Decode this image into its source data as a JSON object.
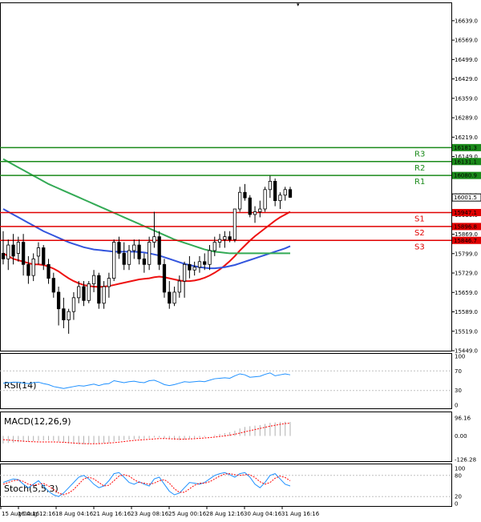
{
  "colors": {
    "bg": "#ffffff",
    "frame": "#000000",
    "bull_fill": "#ffffff",
    "bear_fill": "#000000",
    "candle_stroke": "#000000",
    "resistance": "#1a8a1a",
    "support": "#e00000",
    "ma_fast": "#ee1111",
    "ma_mid": "#3355dd",
    "ma_slow": "#33aa55",
    "rsi_line": "#1e90ff",
    "macd_hist": "#b0b0b0",
    "macd_signal": "#ff0000",
    "stoch_main": "#1e90ff",
    "stoch_signal": "#ff0000",
    "label_text": "#ffffff"
  },
  "chart_data": [
    {
      "type": "candlestick",
      "title": "",
      "ylim": [
        15449.0,
        16705.0
      ],
      "y_ticks": [
        "16639.0",
        "16569.0",
        "16499.0",
        "16429.0",
        "16359.0",
        "16289.0",
        "16219.0",
        "16149.0",
        "16079.0",
        "16009.0",
        "15939.0",
        "15869.0",
        "15799.0",
        "15729.0",
        "15659.0",
        "15589.0",
        "15519.0",
        "15449.0"
      ],
      "x_ticks": [
        "15 Aug 00:16",
        "16 Aug 12:16",
        "18 Aug 04:16",
        "21 Aug 16:16",
        "23 Aug 08:16",
        "25 Aug 00:16",
        "28 Aug 12:16",
        "30 Aug 04:16",
        "31 Aug 16:16"
      ],
      "candles": [
        {
          "o": 15800,
          "h": 15880,
          "l": 15760,
          "c": 15780
        },
        {
          "o": 15780,
          "h": 15850,
          "l": 15740,
          "c": 15830
        },
        {
          "o": 15830,
          "h": 15870,
          "l": 15760,
          "c": 15790
        },
        {
          "o": 15800,
          "h": 15860,
          "l": 15770,
          "c": 15840
        },
        {
          "o": 15840,
          "h": 15870,
          "l": 15720,
          "c": 15760
        },
        {
          "o": 15760,
          "h": 15790,
          "l": 15690,
          "c": 15720
        },
        {
          "o": 15720,
          "h": 15800,
          "l": 15700,
          "c": 15780
        },
        {
          "o": 15790,
          "h": 15840,
          "l": 15760,
          "c": 15820
        },
        {
          "o": 15820,
          "h": 15830,
          "l": 15740,
          "c": 15760
        },
        {
          "o": 15760,
          "h": 15780,
          "l": 15690,
          "c": 15710
        },
        {
          "o": 15710,
          "h": 15730,
          "l": 15640,
          "c": 15660
        },
        {
          "o": 15660,
          "h": 15680,
          "l": 15540,
          "c": 15600
        },
        {
          "o": 15600,
          "h": 15640,
          "l": 15530,
          "c": 15560
        },
        {
          "o": 15560,
          "h": 15600,
          "l": 15510,
          "c": 15590
        },
        {
          "o": 15590,
          "h": 15660,
          "l": 15560,
          "c": 15640
        },
        {
          "o": 15640,
          "h": 15700,
          "l": 15620,
          "c": 15680
        },
        {
          "o": 15680,
          "h": 15700,
          "l": 15610,
          "c": 15630
        },
        {
          "o": 15630,
          "h": 15700,
          "l": 15620,
          "c": 15690
        },
        {
          "o": 15690,
          "h": 15740,
          "l": 15660,
          "c": 15720
        },
        {
          "o": 15720,
          "h": 15730,
          "l": 15600,
          "c": 15620
        },
        {
          "o": 15620,
          "h": 15700,
          "l": 15600,
          "c": 15680
        },
        {
          "o": 15680,
          "h": 15730,
          "l": 15640,
          "c": 15710
        },
        {
          "o": 15710,
          "h": 15850,
          "l": 15700,
          "c": 15840
        },
        {
          "o": 15840,
          "h": 15860,
          "l": 15780,
          "c": 15800
        },
        {
          "o": 15800,
          "h": 15840,
          "l": 15740,
          "c": 15760
        },
        {
          "o": 15760,
          "h": 15830,
          "l": 15740,
          "c": 15810
        },
        {
          "o": 15810,
          "h": 15850,
          "l": 15780,
          "c": 15830
        },
        {
          "o": 15830,
          "h": 15850,
          "l": 15760,
          "c": 15780
        },
        {
          "o": 15780,
          "h": 15800,
          "l": 15730,
          "c": 15760
        },
        {
          "o": 15760,
          "h": 15860,
          "l": 15740,
          "c": 15840
        },
        {
          "o": 15840,
          "h": 15950,
          "l": 15820,
          "c": 15860
        },
        {
          "o": 15860,
          "h": 15880,
          "l": 15740,
          "c": 15760
        },
        {
          "o": 15760,
          "h": 15780,
          "l": 15640,
          "c": 15660
        },
        {
          "o": 15660,
          "h": 15700,
          "l": 15600,
          "c": 15620
        },
        {
          "o": 15620,
          "h": 15680,
          "l": 15610,
          "c": 15660
        },
        {
          "o": 15660,
          "h": 15720,
          "l": 15640,
          "c": 15700
        },
        {
          "o": 15700,
          "h": 15770,
          "l": 15640,
          "c": 15760
        },
        {
          "o": 15760,
          "h": 15790,
          "l": 15710,
          "c": 15740
        },
        {
          "o": 15740,
          "h": 15770,
          "l": 15720,
          "c": 15750
        },
        {
          "o": 15750,
          "h": 15790,
          "l": 15730,
          "c": 15770
        },
        {
          "o": 15770,
          "h": 15800,
          "l": 15740,
          "c": 15760
        },
        {
          "o": 15760,
          "h": 15830,
          "l": 15740,
          "c": 15810
        },
        {
          "o": 15810,
          "h": 15860,
          "l": 15790,
          "c": 15840
        },
        {
          "o": 15840,
          "h": 15870,
          "l": 15820,
          "c": 15850
        },
        {
          "o": 15850,
          "h": 15880,
          "l": 15820,
          "c": 15860
        },
        {
          "o": 15860,
          "h": 15880,
          "l": 15840,
          "c": 15850
        },
        {
          "o": 15850,
          "h": 15950,
          "l": 15840,
          "c": 15960
        },
        {
          "o": 15960,
          "h": 16040,
          "l": 15950,
          "c": 16020
        },
        {
          "o": 16020,
          "h": 16050,
          "l": 15990,
          "c": 16000
        },
        {
          "o": 16000,
          "h": 16010,
          "l": 15930,
          "c": 15940
        },
        {
          "o": 15940,
          "h": 15970,
          "l": 15910,
          "c": 15950
        },
        {
          "o": 15950,
          "h": 15990,
          "l": 15930,
          "c": 15960
        },
        {
          "o": 15960,
          "h": 16040,
          "l": 15950,
          "c": 16030
        },
        {
          "o": 16030,
          "h": 16080,
          "l": 16000,
          "c": 16060
        },
        {
          "o": 16060,
          "h": 16070,
          "l": 15970,
          "c": 15990
        },
        {
          "o": 15990,
          "h": 16020,
          "l": 15960,
          "c": 16010
        },
        {
          "o": 16010,
          "h": 16040,
          "l": 15990,
          "c": 16030
        },
        {
          "o": 16030,
          "h": 16040,
          "l": 16000,
          "c": 16002
        }
      ],
      "moving_averages": [
        {
          "name": "red",
          "values": [
            15800,
            15790,
            15780,
            15775,
            15770,
            15765,
            15760,
            15760,
            15758,
            15752,
            15745,
            15735,
            15722,
            15710,
            15700,
            15692,
            15686,
            15682,
            15680,
            15679,
            15680,
            15682,
            15686,
            15690,
            15694,
            15698,
            15702,
            15706,
            15708,
            15710,
            15714,
            15716,
            15714,
            15710,
            15706,
            15702,
            15700,
            15700,
            15702,
            15706,
            15712,
            15720,
            15730,
            15742,
            15756,
            15772,
            15790,
            15810,
            15828,
            15846,
            15862,
            15876,
            15890,
            15904,
            15918,
            15930,
            15940,
            15950
          ]
        },
        {
          "name": "blue",
          "values": [
            15960,
            15950,
            15940,
            15930,
            15920,
            15910,
            15900,
            15890,
            15880,
            15872,
            15864,
            15856,
            15848,
            15840,
            15834,
            15828,
            15822,
            15818,
            15814,
            15812,
            15810,
            15808,
            15806,
            15806,
            15806,
            15806,
            15806,
            15805,
            15803,
            15800,
            15796,
            15792,
            15786,
            15780,
            15774,
            15768,
            15762,
            15758,
            15754,
            15750,
            15748,
            15746,
            15746,
            15748,
            15750,
            15754,
            15758,
            15764,
            15770,
            15776,
            15782,
            15788,
            15794,
            15800,
            15806,
            15812,
            15818,
            15826
          ]
        },
        {
          "name": "green",
          "values": [
            16140,
            16130,
            16120,
            16110,
            16100,
            16090,
            16080,
            16070,
            16060,
            16050,
            16042,
            16034,
            16026,
            16018,
            16010,
            16002,
            15994,
            15986,
            15978,
            15970,
            15962,
            15954,
            15946,
            15938,
            15930,
            15922,
            15914,
            15906,
            15898,
            15890,
            15882,
            15874,
            15866,
            15858,
            15850,
            15844,
            15838,
            15832,
            15826,
            15820,
            15814,
            15810,
            15806,
            15804,
            15802,
            15800,
            15800,
            15800,
            15800,
            15800,
            15800,
            15800,
            15800,
            15800,
            15800,
            15800,
            15800,
            15800
          ]
        }
      ],
      "levels": [
        {
          "name": "R3",
          "value": 16181.3,
          "label": "16181.3",
          "kind": "resistance"
        },
        {
          "name": "R2",
          "value": 16131.1,
          "label": "16131.1",
          "kind": "resistance"
        },
        {
          "name": "R1",
          "value": 16080.9,
          "label": "16080.9",
          "kind": "resistance"
        },
        {
          "name": "S1",
          "value": 15947.1,
          "label": "15947.1",
          "kind": "support"
        },
        {
          "name": "S2",
          "value": 15896.8,
          "label": "15896.8",
          "kind": "support"
        },
        {
          "name": "S3",
          "value": 15846.7,
          "label": "15846.7",
          "kind": "support"
        }
      ],
      "current_price": {
        "value": 16001.5,
        "label": "16001.5"
      }
    },
    {
      "type": "line",
      "title": "RSI(14)",
      "ylim": [
        0,
        100
      ],
      "y_ticks": [
        "100",
        "70",
        "30",
        "0"
      ],
      "values": [
        45,
        46,
        47,
        47,
        45,
        44,
        46,
        47,
        44,
        42,
        38,
        36,
        34,
        36,
        38,
        40,
        39,
        41,
        43,
        40,
        43,
        44,
        50,
        48,
        46,
        48,
        49,
        47,
        46,
        50,
        51,
        47,
        42,
        40,
        42,
        45,
        48,
        47,
        48,
        49,
        48,
        51,
        54,
        55,
        56,
        55,
        60,
        64,
        62,
        57,
        58,
        59,
        63,
        66,
        60,
        62,
        64,
        62
      ]
    },
    {
      "type": "bar",
      "title": "MACD(12,26,9)",
      "ylim": [
        -126.28,
        96.16
      ],
      "y_ticks": [
        "96.16",
        "0.00",
        "-126.28"
      ],
      "histogram": [
        -40,
        -38,
        -36,
        -34,
        -32,
        -30,
        -28,
        -26,
        -24,
        -24,
        -26,
        -30,
        -35,
        -40,
        -42,
        -44,
        -44,
        -42,
        -40,
        -40,
        -38,
        -36,
        -30,
        -25,
        -22,
        -20,
        -18,
        -16,
        -15,
        -12,
        -8,
        -8,
        -12,
        -16,
        -20,
        -22,
        -20,
        -16,
        -12,
        -8,
        -5,
        0,
        5,
        10,
        15,
        20,
        28,
        40,
        48,
        52,
        55,
        58,
        64,
        70,
        72,
        74,
        76,
        74
      ],
      "signal": [
        -20,
        -22,
        -24,
        -26,
        -28,
        -30,
        -31,
        -32,
        -32,
        -32,
        -32,
        -33,
        -34,
        -36,
        -38,
        -40,
        -41,
        -42,
        -42,
        -41,
        -40,
        -38,
        -36,
        -33,
        -30,
        -27,
        -24,
        -22,
        -20,
        -18,
        -16,
        -14,
        -14,
        -15,
        -16,
        -17,
        -17,
        -16,
        -15,
        -13,
        -11,
        -9,
        -6,
        -3,
        0,
        4,
        9,
        15,
        22,
        28,
        34,
        40,
        46,
        52,
        57,
        62,
        66,
        68
      ]
    },
    {
      "type": "line",
      "title": "Stoch(5,5,3)",
      "ylim": [
        0,
        100
      ],
      "y_ticks": [
        "100",
        "80",
        "20",
        "0"
      ],
      "main": [
        60,
        65,
        70,
        68,
        55,
        45,
        55,
        65,
        50,
        35,
        25,
        20,
        30,
        45,
        60,
        75,
        80,
        70,
        55,
        45,
        50,
        65,
        85,
        88,
        75,
        60,
        55,
        62,
        55,
        50,
        70,
        75,
        55,
        35,
        25,
        30,
        45,
        60,
        58,
        55,
        60,
        70,
        80,
        85,
        88,
        82,
        75,
        85,
        88,
        75,
        55,
        45,
        60,
        80,
        85,
        70,
        55,
        50
      ],
      "signal": [
        55,
        60,
        65,
        67,
        63,
        55,
        52,
        55,
        57,
        50,
        40,
        30,
        25,
        30,
        40,
        55,
        70,
        75,
        70,
        60,
        50,
        52,
        65,
        78,
        82,
        78,
        68,
        60,
        58,
        55,
        58,
        65,
        68,
        58,
        42,
        32,
        32,
        42,
        52,
        58,
        58,
        62,
        70,
        78,
        84,
        85,
        82,
        80,
        82,
        82,
        74,
        62,
        55,
        60,
        72,
        78,
        74,
        65
      ]
    }
  ]
}
